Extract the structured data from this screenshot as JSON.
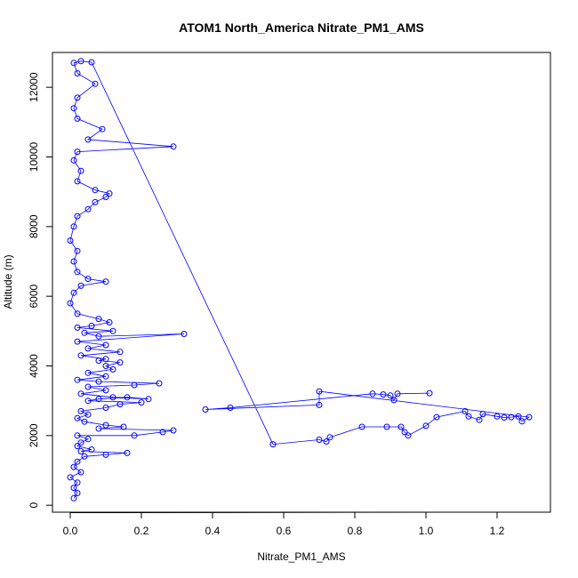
{
  "chart_data": {
    "type": "scatter",
    "title": "ATOM1 North_America Nitrate_PM1_AMS",
    "xlabel": "Nitrate_PM1_AMS",
    "ylabel": "Altitude (m)",
    "xlim": [
      -0.05,
      1.35
    ],
    "ylim": [
      -200,
      13000
    ],
    "x_ticks": [
      0.0,
      0.2,
      0.4,
      0.6,
      0.8,
      1.0,
      1.2
    ],
    "x_tick_labels": [
      "0.0",
      "0.2",
      "0.4",
      "0.6",
      "0.8",
      "1.0",
      "1.2"
    ],
    "y_ticks": [
      0,
      2000,
      4000,
      6000,
      8000,
      10000,
      12000
    ],
    "y_tick_labels": [
      "0",
      "2000",
      "4000",
      "6000",
      "8000",
      "10000",
      "12000"
    ],
    "grid": false,
    "legend": "none",
    "series_color": "#0000ff",
    "series": [
      {
        "points": [
          [
            0.01,
            200
          ],
          [
            0.02,
            350
          ],
          [
            0.01,
            500
          ],
          [
            0.02,
            650
          ],
          [
            0.0,
            800
          ],
          [
            0.03,
            950
          ],
          [
            0.01,
            1100
          ],
          [
            0.02,
            1250
          ],
          [
            0.04,
            1400
          ],
          [
            0.1,
            1450
          ],
          [
            0.16,
            1500
          ],
          [
            0.03,
            1550
          ],
          [
            0.06,
            1600
          ],
          [
            0.02,
            1700
          ],
          [
            0.03,
            1800
          ],
          [
            0.05,
            1900
          ],
          [
            0.02,
            2000
          ],
          [
            0.18,
            2000
          ],
          [
            0.26,
            2100
          ],
          [
            0.29,
            2150
          ],
          [
            0.08,
            2200
          ],
          [
            0.15,
            2250
          ],
          [
            0.1,
            2300
          ],
          [
            0.04,
            2400
          ],
          [
            0.02,
            2500
          ],
          [
            0.05,
            2600
          ],
          [
            0.03,
            2700
          ],
          [
            0.1,
            2800
          ],
          [
            0.14,
            2900
          ],
          [
            0.2,
            2950
          ],
          [
            0.05,
            3000
          ],
          [
            0.08,
            3050
          ],
          [
            0.16,
            3100
          ],
          [
            0.22,
            3050
          ],
          [
            0.12,
            3100
          ],
          [
            0.03,
            3200
          ],
          [
            0.1,
            3300
          ],
          [
            0.05,
            3400
          ],
          [
            0.18,
            3450
          ],
          [
            0.25,
            3500
          ],
          [
            0.08,
            3550
          ],
          [
            0.02,
            3600
          ],
          [
            0.1,
            3700
          ],
          [
            0.05,
            3800
          ],
          [
            0.12,
            3900
          ],
          [
            0.1,
            4000
          ],
          [
            0.14,
            4100
          ],
          [
            0.08,
            4150
          ],
          [
            0.1,
            4200
          ],
          [
            0.03,
            4300
          ],
          [
            0.14,
            4400
          ],
          [
            0.05,
            4500
          ],
          [
            0.1,
            4600
          ],
          [
            0.02,
            4700
          ],
          [
            0.32,
            4920
          ],
          [
            0.08,
            4850
          ],
          [
            0.04,
            4950
          ],
          [
            0.12,
            5000
          ],
          [
            0.02,
            5100
          ],
          [
            0.06,
            5150
          ],
          [
            0.11,
            5250
          ],
          [
            0.08,
            5350
          ],
          [
            0.02,
            5500
          ],
          [
            0.0,
            5800
          ],
          [
            0.01,
            6100
          ],
          [
            0.03,
            6300
          ],
          [
            0.1,
            6420
          ],
          [
            0.05,
            6500
          ],
          [
            0.02,
            6700
          ],
          [
            0.01,
            7000
          ],
          [
            0.02,
            7300
          ],
          [
            0.0,
            7600
          ],
          [
            0.01,
            8000
          ],
          [
            0.02,
            8300
          ],
          [
            0.05,
            8500
          ],
          [
            0.07,
            8700
          ],
          [
            0.1,
            8850
          ],
          [
            0.11,
            8950
          ],
          [
            0.07,
            9050
          ],
          [
            0.02,
            9300
          ],
          [
            0.03,
            9600
          ],
          [
            0.01,
            9900
          ],
          [
            0.02,
            10150
          ],
          [
            0.29,
            10300
          ],
          [
            0.05,
            10500
          ],
          [
            0.09,
            10800
          ],
          [
            0.02,
            11100
          ],
          [
            0.01,
            11400
          ],
          [
            0.02,
            11700
          ],
          [
            0.07,
            12100
          ],
          [
            0.02,
            12400
          ],
          [
            0.01,
            12700
          ],
          [
            0.03,
            12750
          ],
          [
            0.06,
            12720
          ],
          [
            0.57,
            1750
          ],
          [
            0.7,
            1880
          ],
          [
            0.72,
            1830
          ],
          [
            0.73,
            1950
          ],
          [
            0.82,
            2250
          ],
          [
            0.89,
            2250
          ],
          [
            0.93,
            2250
          ],
          [
            0.94,
            2100
          ],
          [
            0.95,
            2000
          ],
          [
            1.0,
            2280
          ],
          [
            1.03,
            2530
          ],
          [
            1.11,
            2700
          ],
          [
            1.12,
            2550
          ],
          [
            1.15,
            2450
          ],
          [
            1.16,
            2620
          ],
          [
            1.2,
            2550
          ],
          [
            1.22,
            2520
          ],
          [
            1.24,
            2530
          ],
          [
            1.26,
            2550
          ],
          [
            1.27,
            2410
          ],
          [
            1.29,
            2530
          ],
          [
            0.7,
            3270
          ],
          [
            0.7,
            2880
          ],
          [
            0.38,
            2750
          ],
          [
            0.45,
            2800
          ],
          [
            0.85,
            3200
          ],
          [
            0.88,
            3180
          ],
          [
            0.9,
            3150
          ],
          [
            0.91,
            3020
          ],
          [
            0.92,
            3200
          ],
          [
            1.01,
            3220
          ]
        ]
      }
    ]
  }
}
